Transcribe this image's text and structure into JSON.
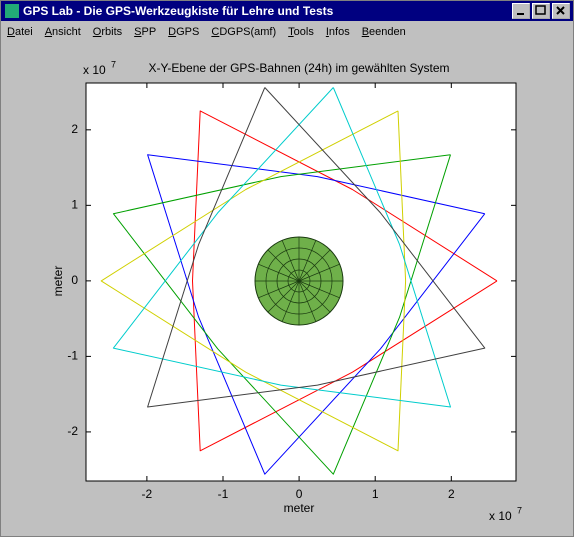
{
  "window": {
    "title": "GPS Lab  -  Die GPS-Werkzeugkiste für Lehre und Tests"
  },
  "menu": [
    "Datei",
    "Ansicht",
    "Orbits",
    "SPP",
    "DGPS",
    "CDGPS(amf)",
    "Tools",
    "Infos",
    "Beenden"
  ],
  "chart_data": {
    "type": "line",
    "title": "X-Y-Ebene der GPS-Bahnen (24h) im gewählten System",
    "x_label": "meter",
    "y_label": "meter",
    "x_exponent": {
      "base": "x 10",
      "power": "7"
    },
    "y_exponent": {
      "base": "x 10",
      "power": "7"
    },
    "xlim": [
      -2.8,
      2.85
    ],
    "ylim": [
      -2.65,
      2.62
    ],
    "xticks": [
      -2,
      -1,
      0,
      1,
      2
    ],
    "yticks": [
      -2,
      -1,
      0,
      1,
      2
    ],
    "series": [
      {
        "color": "#ff0000",
        "x": [
          2.6,
          0.7,
          -1.3,
          -1.4,
          -1.3,
          0.7,
          2.6
        ],
        "values": [
          0,
          1.21,
          2.25,
          0,
          -2.25,
          -1.21,
          0
        ]
      },
      {
        "color": "#0000ff",
        "x": [
          2.44,
          0.24,
          -1.99,
          -1.32,
          -0.45,
          1.07,
          2.44
        ],
        "values": [
          0.89,
          1.38,
          1.67,
          -0.48,
          -2.56,
          -0.9,
          0.89
        ]
      },
      {
        "color": "#00a000",
        "x": [
          1.99,
          -0.24,
          -2.44,
          -1.07,
          0.45,
          1.32,
          1.99
        ],
        "values": [
          1.67,
          1.38,
          0.89,
          -0.9,
          -2.56,
          -0.48,
          1.67
        ]
      },
      {
        "color": "#d0d000",
        "x": [
          1.3,
          -0.7,
          -2.6,
          -0.7,
          1.3,
          1.4,
          1.3
        ],
        "values": [
          2.25,
          1.21,
          0,
          -1.21,
          -2.25,
          0,
          2.25
        ]
      },
      {
        "color": "#00cccc",
        "x": [
          0.45,
          -1.07,
          -2.44,
          -0.24,
          1.99,
          1.32,
          0.45
        ],
        "values": [
          2.56,
          0.9,
          -0.89,
          -1.38,
          -1.67,
          0.48,
          2.56
        ]
      },
      {
        "color": "#404040",
        "x": [
          -0.45,
          -1.32,
          -1.99,
          0.24,
          2.44,
          1.07,
          -0.45
        ],
        "values": [
          2.56,
          0.48,
          -1.67,
          -1.38,
          -0.89,
          0.9,
          2.56
        ]
      }
    ]
  }
}
